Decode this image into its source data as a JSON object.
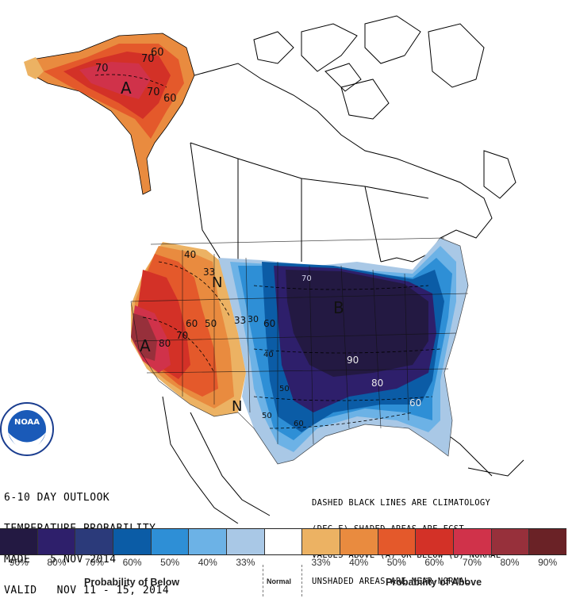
{
  "outlook": {
    "line1": "6-10 DAY OUTLOOK",
    "line2": "TEMPERATURE PROBABILITY",
    "line3": "MADE   5 NOV 2014",
    "line4": "VALID   NOV 11 - 15, 2014"
  },
  "legend_note": {
    "line1": "DASHED BLACK LINES ARE CLIMATOLOGY",
    "line2": "(DEG F) SHADED AREAS ARE FCST",
    "line3": "VALUES ABOVE (A) OR BELOW (B) NORMAL",
    "line4": "UNSHADED AREAS ARE NEAR-NORMAL"
  },
  "logo": {
    "text": "NOAA"
  },
  "map_labels": {
    "above_alaska": "A",
    "above_west": "A",
    "below_central": "B",
    "normal_north": "N",
    "normal_south": "N",
    "c_60a": "60",
    "c_70a": "70",
    "c_70b": "70",
    "c_70c": "70",
    "c_60b": "60",
    "c_40": "40",
    "c_33": "33",
    "c_60c": "60",
    "c_50a": "50",
    "c_70d": "70",
    "c_80a": "80",
    "c_33b": "33",
    "c_30": "30",
    "c_60d": "60",
    "c_40b": "40",
    "c_50b": "50",
    "c_90": "90",
    "c_80b": "80",
    "c_60e": "60",
    "c_70e": "70",
    "c_60f": "60",
    "c_50c": "50"
  },
  "colors": {
    "below": [
      "#231942",
      "#2e1f6b",
      "#2b3a7a",
      "#0b5ca6",
      "#2e8fd6",
      "#6cb2e6",
      "#a9c8e6"
    ],
    "normal": "#ffffff",
    "above": [
      "#ecb263",
      "#e98b3f",
      "#e4592b",
      "#d33127",
      "#d0324a",
      "#97303b",
      "#6a2226"
    ]
  },
  "scale": {
    "ticks": [
      "90%",
      "80%",
      "70%",
      "60%",
      "50%",
      "40%",
      "33%",
      "Normal",
      "33%",
      "40%",
      "50%",
      "60%",
      "70%",
      "80%",
      "90%"
    ],
    "below_label": "Probability of Below",
    "normal_label": "Normal",
    "above_label": "Probability of Above"
  }
}
